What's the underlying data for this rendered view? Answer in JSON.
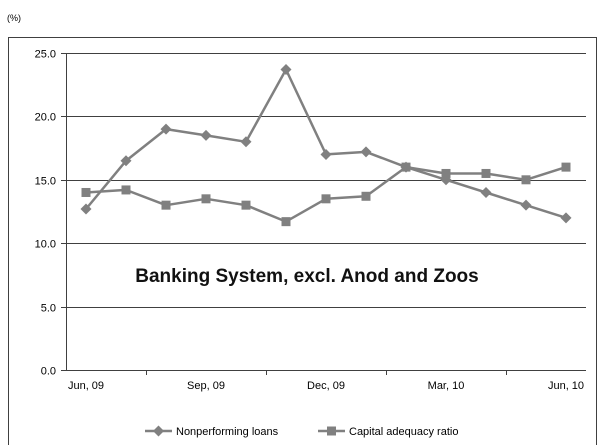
{
  "chart_data": {
    "type": "line",
    "xlabel": "",
    "ylabel": "(%)",
    "categories": [
      "Jun, 09",
      "",
      "",
      "Sep, 09",
      "",
      "",
      "Dec, 09",
      "",
      "",
      "Mar, 10",
      "",
      "",
      "Jun, 10"
    ],
    "ylim": [
      0,
      25
    ],
    "y_ticks": [
      {
        "value": 0,
        "label": "0.0"
      },
      {
        "value": 5,
        "label": "5.0"
      },
      {
        "value": 10,
        "label": "10.0"
      },
      {
        "value": 15,
        "label": "15.0"
      },
      {
        "value": 20,
        "label": "20.0"
      },
      {
        "value": 25,
        "label": "25.0"
      }
    ],
    "grid": "horizontal",
    "legend": "bottom",
    "series": [
      {
        "name": "Nonperforming loans",
        "marker": "diamond",
        "color": "#808080",
        "values": [
          12.7,
          16.5,
          19.0,
          18.5,
          18.0,
          23.7,
          17.0,
          17.2,
          16.0,
          15.0,
          14.0,
          13.0,
          12.0
        ]
      },
      {
        "name": "Capital adequacy ratio",
        "marker": "square",
        "color": "#808080",
        "values": [
          14.0,
          14.2,
          13.0,
          13.5,
          13.0,
          11.7,
          13.5,
          13.7,
          16.0,
          15.5,
          15.5,
          15.0,
          16.0
        ]
      }
    ],
    "annotations": [
      {
        "text": "Banking System, excl. Anod and Zoos"
      }
    ]
  }
}
